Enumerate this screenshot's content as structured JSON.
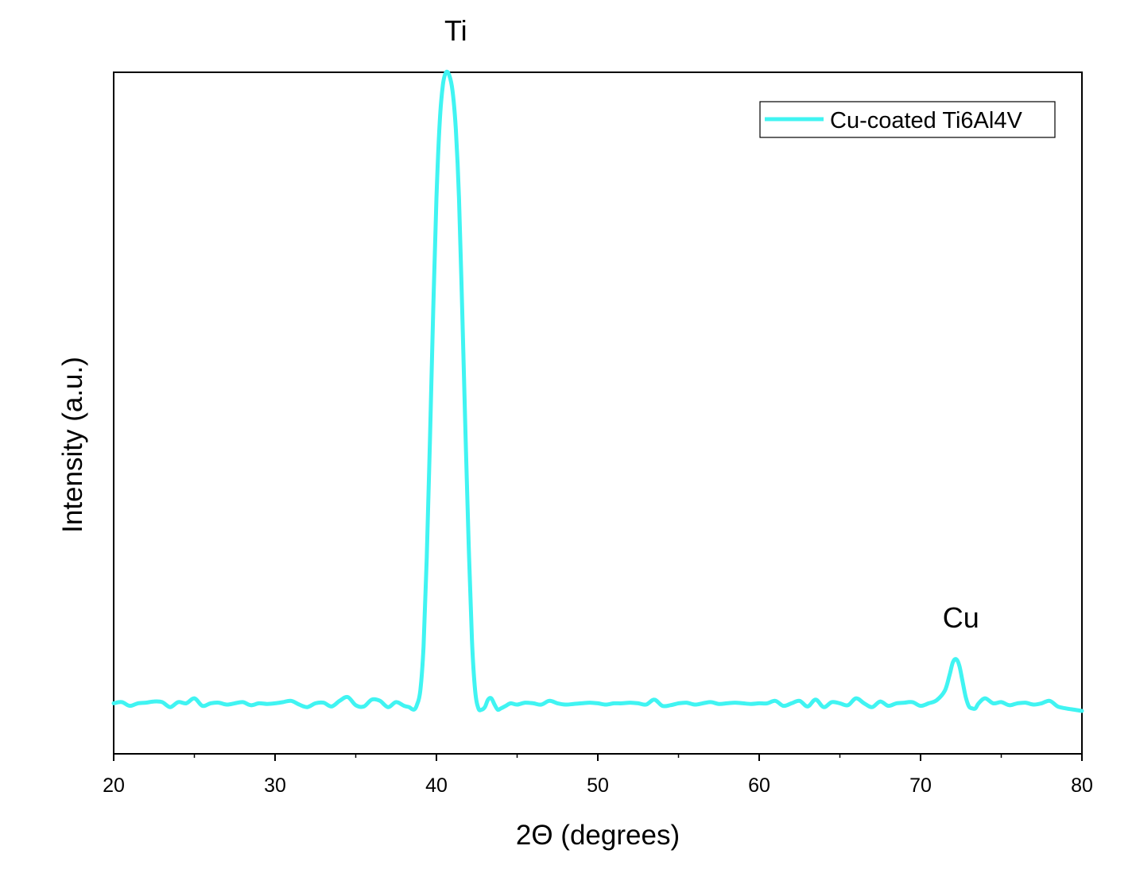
{
  "chart_data": {
    "type": "line",
    "xlabel": "2Θ (degrees)",
    "ylabel": "Intensity (a.u.)",
    "xlim": [
      20,
      80
    ],
    "ylim": [
      -0.08,
      1.0
    ],
    "x_ticks": [
      20,
      30,
      40,
      50,
      60,
      70,
      80
    ],
    "y_ticks_shown": false,
    "grid": false,
    "legend_position": "top-right",
    "series": [
      {
        "name": "Cu-coated Ti6Al4V",
        "color": "#40f4f2",
        "x": [
          20.0,
          20.5,
          21.0,
          21.5,
          22.0,
          22.5,
          23.0,
          23.5,
          24.0,
          24.5,
          25.0,
          25.5,
          26.0,
          26.5,
          27.0,
          27.5,
          28.0,
          28.5,
          29.0,
          29.5,
          30.0,
          30.5,
          31.0,
          31.5,
          32.0,
          32.5,
          33.0,
          33.5,
          34.0,
          34.5,
          35.0,
          35.5,
          36.0,
          36.5,
          37.0,
          37.5,
          38.0,
          38.3,
          38.6,
          38.8,
          39.0,
          39.2,
          39.4,
          39.6,
          39.8,
          40.0,
          40.2,
          40.4,
          40.6,
          40.8,
          41.0,
          41.2,
          41.4,
          41.6,
          41.8,
          42.0,
          42.2,
          42.4,
          42.6,
          42.8,
          43.0,
          43.2,
          43.4,
          43.6,
          43.8,
          44.0,
          44.3,
          44.6,
          45.0,
          45.5,
          46.0,
          46.5,
          47.0,
          47.5,
          48.0,
          48.5,
          49.0,
          49.5,
          50.0,
          50.5,
          51.0,
          51.5,
          52.0,
          52.5,
          53.0,
          53.5,
          54.0,
          54.5,
          55.0,
          55.5,
          56.0,
          56.5,
          57.0,
          57.5,
          58.0,
          58.5,
          59.0,
          59.5,
          60.0,
          60.5,
          61.0,
          61.5,
          62.0,
          62.5,
          63.0,
          63.5,
          64.0,
          64.5,
          65.0,
          65.5,
          66.0,
          66.5,
          67.0,
          67.5,
          68.0,
          68.5,
          69.0,
          69.5,
          70.0,
          70.5,
          71.0,
          71.5,
          71.8,
          72.0,
          72.2,
          72.4,
          72.6,
          72.8,
          73.0,
          73.2,
          73.4,
          73.6,
          74.0,
          74.5,
          75.0,
          75.5,
          76.0,
          76.5,
          77.0,
          77.5,
          78.0,
          78.5,
          79.0,
          79.5,
          80.0
        ],
        "y": [
          0.0,
          0.002,
          -0.004,
          0.0,
          0.001,
          0.003,
          0.002,
          -0.006,
          0.002,
          0.0,
          0.008,
          -0.004,
          0.0,
          0.001,
          -0.002,
          0.0,
          0.002,
          -0.003,
          0.0,
          -0.001,
          0.0,
          0.002,
          0.004,
          -0.002,
          -0.006,
          0.0,
          0.001,
          -0.005,
          0.004,
          0.01,
          -0.003,
          -0.005,
          0.006,
          0.004,
          -0.006,
          0.002,
          -0.004,
          -0.006,
          -0.01,
          -0.002,
          0.02,
          0.09,
          0.23,
          0.42,
          0.62,
          0.8,
          0.92,
          0.98,
          1.0,
          0.995,
          0.97,
          0.91,
          0.8,
          0.62,
          0.43,
          0.25,
          0.1,
          0.02,
          -0.008,
          -0.01,
          -0.006,
          0.006,
          0.008,
          -0.002,
          -0.01,
          -0.008,
          -0.004,
          0.0,
          -0.002,
          0.001,
          0.0,
          -0.002,
          0.004,
          0.0,
          -0.002,
          -0.001,
          0.0,
          0.001,
          0.0,
          -0.002,
          0.0,
          0.0,
          0.001,
          0.0,
          -0.002,
          0.006,
          -0.004,
          -0.003,
          0.0,
          0.001,
          -0.002,
          0.0,
          0.002,
          -0.001,
          0.0,
          0.001,
          0.0,
          -0.001,
          0.0,
          0.0,
          0.004,
          -0.004,
          0.0,
          0.004,
          -0.005,
          0.006,
          -0.006,
          0.002,
          0.0,
          -0.003,
          0.008,
          0.0,
          -0.006,
          0.003,
          -0.004,
          0.0,
          0.001,
          0.002,
          -0.004,
          0.0,
          0.005,
          0.02,
          0.045,
          0.065,
          0.07,
          0.06,
          0.035,
          0.01,
          -0.005,
          -0.008,
          -0.008,
          0.0,
          0.008,
          0.0,
          0.002,
          -0.003,
          0.0,
          0.001,
          -0.002,
          0.0,
          0.004,
          -0.005,
          -0.008,
          -0.01,
          -0.012
        ]
      }
    ],
    "annotations": [
      {
        "text": "Ti",
        "x": 41.2,
        "y": 1.0
      },
      {
        "text": "Cu",
        "x": 72.5,
        "y": 0.07
      }
    ]
  }
}
